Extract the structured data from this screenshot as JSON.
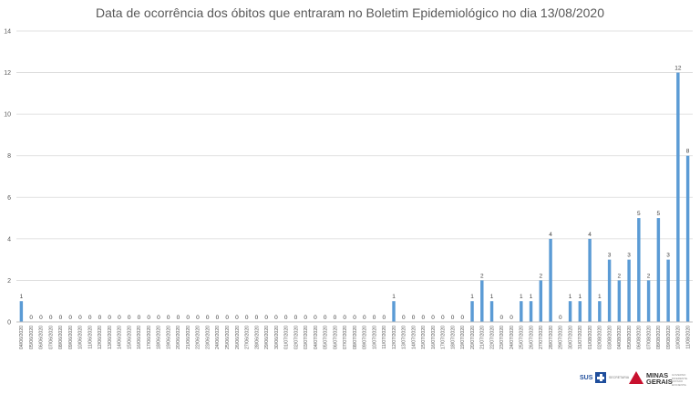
{
  "chart_data": {
    "type": "bar",
    "title": "Data de ocorrência dos óbitos que entraram no Boletim Epidemiológico no dia 13/08/2020",
    "xlabel": "",
    "ylabel": "",
    "ylim": [
      0,
      14
    ],
    "yticks": [
      0,
      2,
      4,
      6,
      8,
      10,
      12,
      14
    ],
    "grid": true,
    "legend": "none",
    "bar_color": "#5b9bd5",
    "categories": [
      "04/06/2020",
      "05/06/2020",
      "06/06/2020",
      "07/06/2020",
      "08/06/2020",
      "09/06/2020",
      "10/06/2020",
      "11/06/2020",
      "12/06/2020",
      "13/06/2020",
      "14/06/2020",
      "15/06/2020",
      "16/06/2020",
      "17/06/2020",
      "18/06/2020",
      "19/06/2020",
      "20/06/2020",
      "21/06/2020",
      "22/06/2020",
      "23/06/2020",
      "24/06/2020",
      "25/06/2020",
      "26/06/2020",
      "27/06/2020",
      "28/06/2020",
      "29/06/2020",
      "30/06/2020",
      "01/07/2020",
      "02/07/2020",
      "03/07/2020",
      "04/07/2020",
      "05/07/2020",
      "06/07/2020",
      "07/07/2020",
      "08/07/2020",
      "09/07/2020",
      "10/07/2020",
      "11/07/2020",
      "12/07/2020",
      "13/07/2020",
      "14/07/2020",
      "15/07/2020",
      "16/07/2020",
      "17/07/2020",
      "18/07/2020",
      "19/07/2020",
      "20/07/2020",
      "21/07/2020",
      "22/07/2020",
      "23/07/2020",
      "24/07/2020",
      "25/07/2020",
      "26/07/2020",
      "27/07/2020",
      "28/07/2020",
      "29/07/2020",
      "30/07/2020",
      "31/07/2020",
      "01/08/2020",
      "02/08/2020",
      "03/08/2020",
      "04/08/2020",
      "05/08/2020",
      "06/08/2020",
      "07/08/2020",
      "08/08/2020",
      "09/08/2020",
      "10/08/2020",
      "11/08/2020"
    ],
    "values": [
      1,
      0,
      0,
      0,
      0,
      0,
      0,
      0,
      0,
      0,
      0,
      0,
      0,
      0,
      0,
      0,
      0,
      0,
      0,
      0,
      0,
      0,
      0,
      0,
      0,
      0,
      0,
      0,
      0,
      0,
      0,
      0,
      0,
      0,
      0,
      0,
      0,
      0,
      1,
      0,
      0,
      0,
      0,
      0,
      0,
      0,
      1,
      2,
      1,
      0,
      0,
      1,
      1,
      2,
      4,
      0,
      1,
      1,
      4,
      1,
      3,
      2,
      3,
      5,
      2,
      5,
      3,
      12,
      8
    ]
  },
  "logos": {
    "sus_text": "SUS",
    "sus_small": "SECRETARIA",
    "mg_text_1": "MINAS",
    "mg_text_2": "GERAIS",
    "mg_small": "GOVERNO DIFERENTE. ESTADO EFICIENTE."
  }
}
